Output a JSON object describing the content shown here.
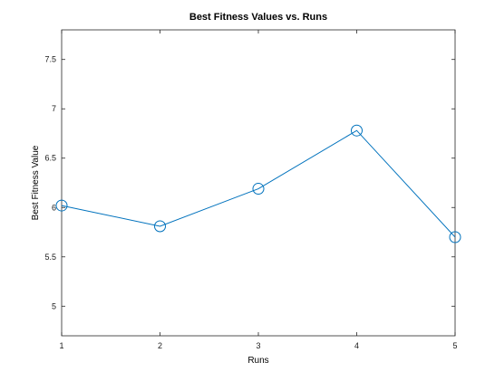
{
  "chart_data": {
    "type": "line",
    "title": "Best Fitness Values vs. Runs",
    "xlabel": "Runs",
    "ylabel": "Best Fitness Value",
    "x": [
      1,
      2,
      3,
      4,
      5
    ],
    "series": [
      {
        "values": [
          6.02,
          5.81,
          6.19,
          6.78,
          5.7
        ],
        "color": "#0072BD",
        "marker": "circle"
      }
    ],
    "xlim": [
      1,
      5
    ],
    "ylim": [
      4.7,
      7.8
    ],
    "xticks": [
      "1",
      "2",
      "3",
      "4",
      "5"
    ],
    "yticks": [
      "5",
      "5.5",
      "6",
      "6.5",
      "7",
      "7.5"
    ],
    "ytick_values": [
      5,
      5.5,
      6,
      6.5,
      7,
      7.5
    ],
    "grid": false,
    "legend": "none"
  }
}
